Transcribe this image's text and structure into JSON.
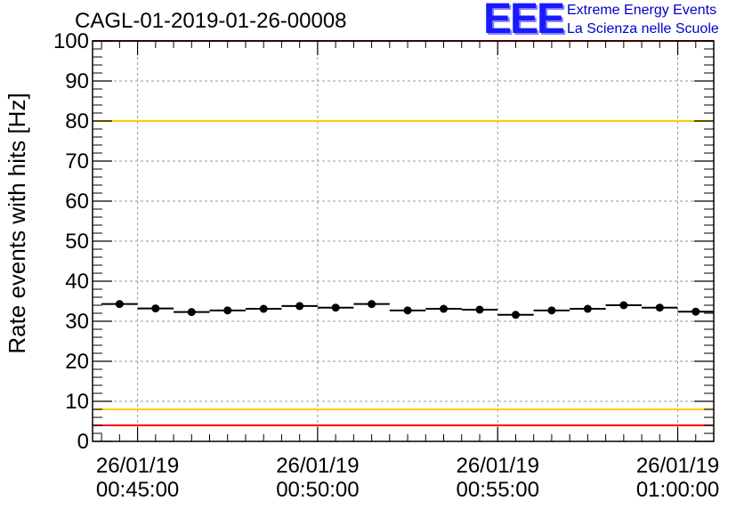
{
  "chart_data": {
    "type": "scatter",
    "title": "CAGL-01-2019-01-26-00008",
    "ylabel": "Rate events with hits [Hz]",
    "xlabel": "",
    "ylim": [
      0,
      100
    ],
    "yticks": [
      0,
      10,
      20,
      30,
      40,
      50,
      60,
      70,
      80,
      90,
      100
    ],
    "xlim": [
      "26/01/19 00:43:45",
      "26/01/19 01:01:00"
    ],
    "xticks": [
      {
        "date": "26/01/19",
        "time": "00:45:00",
        "seconds": 2700
      },
      {
        "date": "26/01/19",
        "time": "00:50:00",
        "seconds": 3000
      },
      {
        "date": "26/01/19",
        "time": "00:55:00",
        "seconds": 3300
      },
      {
        "date": "26/01/19",
        "time": "01:00:00",
        "seconds": 3600
      }
    ],
    "grid": true,
    "reference_lines": [
      {
        "value": 100,
        "color": "#ff0000"
      },
      {
        "value": 80,
        "color": "#ffcc00"
      },
      {
        "value": 8,
        "color": "#ffcc00"
      },
      {
        "value": 4,
        "color": "#ff0000"
      }
    ],
    "series": [
      {
        "marker_color": "#000000",
        "points": [
          {
            "x_seconds": 2670,
            "y": 34.3
          },
          {
            "x_seconds": 2730,
            "y": 33.2
          },
          {
            "x_seconds": 2790,
            "y": 32.3
          },
          {
            "x_seconds": 2850,
            "y": 32.7
          },
          {
            "x_seconds": 2910,
            "y": 33.1
          },
          {
            "x_seconds": 2970,
            "y": 33.8
          },
          {
            "x_seconds": 3030,
            "y": 33.4
          },
          {
            "x_seconds": 3090,
            "y": 34.3
          },
          {
            "x_seconds": 3150,
            "y": 32.7
          },
          {
            "x_seconds": 3210,
            "y": 33.1
          },
          {
            "x_seconds": 3270,
            "y": 32.9
          },
          {
            "x_seconds": 3330,
            "y": 31.6
          },
          {
            "x_seconds": 3390,
            "y": 32.7
          },
          {
            "x_seconds": 3450,
            "y": 33.1
          },
          {
            "x_seconds": 3510,
            "y": 34.0
          },
          {
            "x_seconds": 3570,
            "y": 33.4
          },
          {
            "x_seconds": 3630,
            "y": 32.4
          }
        ]
      }
    ]
  },
  "logo": {
    "mark": "EEE",
    "line1": "Extreme Energy Events",
    "line2": "La Scienza nelle Scuole"
  }
}
